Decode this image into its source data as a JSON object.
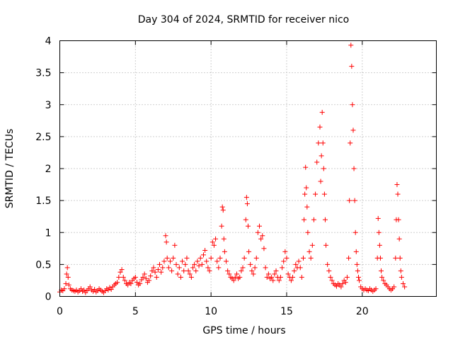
{
  "chart_data": {
    "type": "scatter",
    "title": "Day 304 of 2024, SRMTID for receiver nico",
    "xlabel": "GPS time / hours",
    "ylabel": "SRMTID / TECUs",
    "xlim": [
      0,
      24.9
    ],
    "ylim": [
      0,
      4
    ],
    "xticks": [
      0,
      5,
      10,
      15,
      20
    ],
    "yticks": [
      0,
      0.5,
      1,
      1.5,
      2,
      2.5,
      3,
      3.5,
      4
    ],
    "xtick_labels": [
      "0",
      "5",
      "10",
      "15",
      "20"
    ],
    "ytick_labels": [
      "0",
      "0.5",
      "1",
      "1.5",
      "2",
      "2.5",
      "3",
      "3.5",
      "4"
    ],
    "grid": true,
    "marker": "+",
    "color": "#ff0000",
    "series": [
      {
        "name": "SRMTID",
        "x": [
          0.0,
          0.1,
          0.2,
          0.3,
          0.4,
          0.45,
          0.5,
          0.55,
          0.6,
          0.7,
          0.8,
          0.9,
          1.0,
          1.1,
          1.2,
          1.3,
          1.4,
          1.5,
          1.6,
          1.7,
          1.8,
          1.9,
          2.0,
          2.1,
          2.2,
          2.3,
          2.4,
          2.5,
          2.6,
          2.7,
          2.8,
          2.9,
          3.0,
          3.1,
          3.2,
          3.3,
          3.4,
          3.5,
          3.6,
          3.7,
          3.8,
          3.9,
          4.0,
          4.1,
          4.2,
          4.3,
          4.4,
          4.5,
          4.6,
          4.7,
          4.8,
          4.9,
          5.0,
          5.1,
          5.2,
          5.3,
          5.4,
          5.5,
          5.6,
          5.7,
          5.8,
          5.9,
          6.0,
          6.1,
          6.2,
          6.3,
          6.4,
          6.5,
          6.6,
          6.7,
          6.8,
          6.9,
          7.0,
          7.05,
          7.1,
          7.2,
          7.3,
          7.4,
          7.5,
          7.6,
          7.7,
          7.8,
          7.9,
          8.0,
          8.1,
          8.2,
          8.3,
          8.4,
          8.5,
          8.6,
          8.7,
          8.8,
          8.9,
          9.0,
          9.1,
          9.2,
          9.3,
          9.4,
          9.5,
          9.6,
          9.7,
          9.8,
          9.9,
          10.0,
          10.1,
          10.2,
          10.3,
          10.4,
          10.5,
          10.6,
          10.7,
          10.75,
          10.8,
          10.85,
          10.9,
          11.0,
          11.1,
          11.2,
          11.3,
          11.4,
          11.5,
          11.6,
          11.7,
          11.8,
          11.9,
          12.0,
          12.1,
          12.2,
          12.3,
          12.35,
          12.4,
          12.45,
          12.5,
          12.6,
          12.7,
          12.8,
          12.9,
          13.0,
          13.1,
          13.2,
          13.3,
          13.4,
          13.5,
          13.6,
          13.7,
          13.8,
          13.9,
          14.0,
          14.1,
          14.2,
          14.3,
          14.4,
          14.5,
          14.6,
          14.7,
          14.8,
          14.9,
          15.0,
          15.1,
          15.2,
          15.3,
          15.4,
          15.5,
          15.6,
          15.7,
          15.8,
          15.9,
          16.0,
          16.1,
          16.15,
          16.2,
          16.25,
          16.3,
          16.35,
          16.4,
          16.5,
          16.6,
          16.7,
          16.8,
          16.9,
          17.0,
          17.1,
          17.2,
          17.25,
          17.3,
          17.35,
          17.4,
          17.45,
          17.5,
          17.55,
          17.6,
          17.7,
          17.8,
          17.9,
          18.0,
          18.1,
          18.2,
          18.3,
          18.4,
          18.5,
          18.6,
          18.7,
          18.8,
          18.9,
          19.0,
          19.1,
          19.15,
          19.2,
          19.25,
          19.3,
          19.35,
          19.4,
          19.45,
          19.5,
          19.55,
          19.6,
          19.65,
          19.7,
          19.75,
          19.8,
          19.9,
          20.0,
          20.1,
          20.2,
          20.3,
          20.4,
          20.5,
          20.6,
          20.7,
          20.8,
          20.9,
          21.0,
          21.05,
          21.1,
          21.15,
          21.2,
          21.25,
          21.3,
          21.4,
          21.5,
          21.6,
          21.7,
          21.8,
          21.9,
          22.0,
          22.1,
          22.2,
          22.25,
          22.3,
          22.35,
          22.4,
          22.45,
          22.5,
          22.55,
          22.6,
          22.7,
          22.8
        ],
        "y": [
          0.07,
          0.1,
          0.09,
          0.12,
          0.2,
          0.35,
          0.45,
          0.3,
          0.18,
          0.12,
          0.1,
          0.09,
          0.08,
          0.1,
          0.07,
          0.09,
          0.12,
          0.08,
          0.1,
          0.06,
          0.09,
          0.12,
          0.15,
          0.1,
          0.08,
          0.11,
          0.07,
          0.09,
          0.12,
          0.1,
          0.08,
          0.06,
          0.09,
          0.12,
          0.1,
          0.14,
          0.11,
          0.15,
          0.18,
          0.2,
          0.22,
          0.3,
          0.38,
          0.42,
          0.3,
          0.25,
          0.2,
          0.18,
          0.22,
          0.2,
          0.25,
          0.28,
          0.3,
          0.22,
          0.18,
          0.2,
          0.26,
          0.3,
          0.35,
          0.28,
          0.22,
          0.25,
          0.32,
          0.4,
          0.45,
          0.38,
          0.3,
          0.42,
          0.5,
          0.38,
          0.45,
          0.55,
          0.95,
          0.85,
          0.6,
          0.45,
          0.55,
          0.4,
          0.6,
          0.8,
          0.5,
          0.35,
          0.45,
          0.3,
          0.55,
          0.4,
          0.5,
          0.6,
          0.4,
          0.35,
          0.3,
          0.45,
          0.5,
          0.4,
          0.55,
          0.48,
          0.6,
          0.5,
          0.65,
          0.72,
          0.55,
          0.45,
          0.4,
          0.6,
          0.85,
          0.8,
          0.9,
          0.55,
          0.45,
          0.6,
          1.1,
          1.4,
          1.35,
          0.9,
          0.7,
          0.55,
          0.4,
          0.35,
          0.3,
          0.28,
          0.25,
          0.3,
          0.35,
          0.28,
          0.3,
          0.4,
          0.45,
          0.6,
          1.2,
          1.55,
          1.45,
          1.1,
          0.7,
          0.5,
          0.4,
          0.35,
          0.45,
          0.6,
          1.0,
          1.1,
          0.9,
          0.95,
          0.75,
          0.45,
          0.3,
          0.35,
          0.28,
          0.3,
          0.25,
          0.35,
          0.4,
          0.3,
          0.25,
          0.3,
          0.45,
          0.55,
          0.7,
          0.6,
          0.35,
          0.3,
          0.25,
          0.3,
          0.4,
          0.5,
          0.45,
          0.55,
          0.45,
          0.3,
          0.6,
          1.2,
          1.6,
          2.02,
          1.7,
          1.4,
          1.0,
          0.7,
          0.6,
          0.8,
          1.2,
          1.6,
          2.1,
          2.4,
          2.65,
          1.8,
          2.2,
          2.88,
          2.4,
          2.0,
          1.6,
          1.2,
          0.8,
          0.5,
          0.4,
          0.3,
          0.25,
          0.2,
          0.18,
          0.16,
          0.2,
          0.18,
          0.15,
          0.2,
          0.25,
          0.22,
          0.3,
          0.6,
          1.5,
          2.4,
          3.93,
          3.6,
          3.0,
          2.6,
          2.0,
          1.5,
          1.0,
          0.7,
          0.5,
          0.4,
          0.3,
          0.25,
          0.15,
          0.12,
          0.1,
          0.12,
          0.1,
          0.09,
          0.12,
          0.1,
          0.08,
          0.1,
          0.12,
          0.6,
          1.22,
          1.0,
          0.8,
          0.6,
          0.4,
          0.3,
          0.25,
          0.2,
          0.18,
          0.15,
          0.12,
          0.1,
          0.12,
          0.15,
          0.6,
          1.2,
          1.75,
          1.6,
          1.2,
          0.9,
          0.6,
          0.4,
          0.3,
          0.2,
          0.15
        ]
      }
    ]
  }
}
